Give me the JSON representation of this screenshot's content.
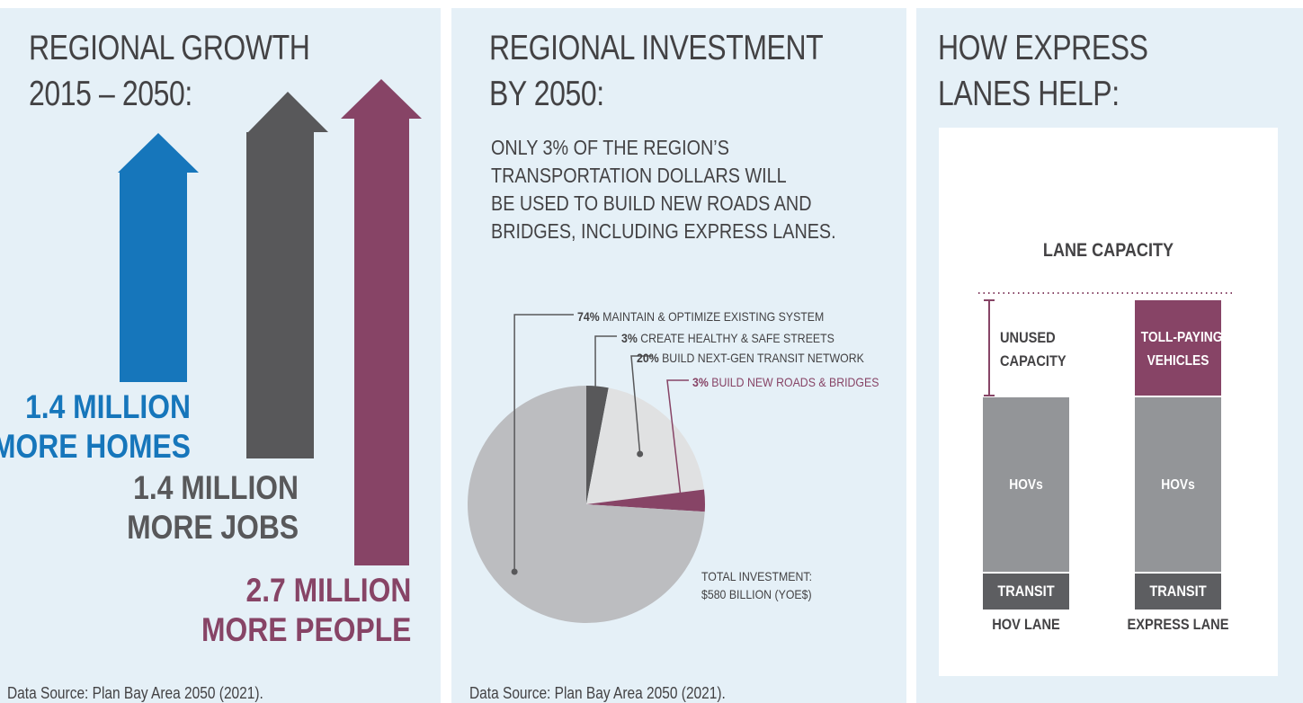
{
  "growth": {
    "title_lines": [
      "REGIONAL GROWTH",
      "2015 – 2050:"
    ],
    "homes": {
      "line1": "1.4 MILLION",
      "line2": "MORE HOMES",
      "value_millions": 1.4,
      "color": "#1676bb"
    },
    "jobs": {
      "line1": "1.4 MILLION",
      "line2": "MORE JOBS",
      "value_millions": 1.4,
      "color": "#58585a"
    },
    "people": {
      "line1": "2.7 MILLION",
      "line2": "MORE PEOPLE",
      "value_millions": 2.7,
      "color": "#874466"
    },
    "source": "Data Source: Plan Bay Area 2050 (2021)."
  },
  "investment": {
    "title_lines": [
      "REGIONAL INVESTMENT",
      "BY 2050:"
    ],
    "intro_lines": [
      "ONLY 3% OF THE REGION’S",
      "TRANSPORTATION DOLLARS WILL",
      "BE USED TO BUILD NEW ROADS AND",
      "BRIDGES, INCLUDING EXPRESS LANES."
    ],
    "total_lines": [
      "TOTAL INVESTMENT:",
      "$580 BILLION (YOE$)"
    ],
    "source": "Data Source: Plan Bay Area 2050 (2021)."
  },
  "express": {
    "title_lines": [
      "HOW EXPRESS",
      "LANES HELP:"
    ],
    "chart_title": "LANE CAPACITY",
    "unused_lines": [
      "UNUSED",
      "CAPACITY"
    ],
    "toll_lines": [
      "TOLL-PAYING",
      "VEHICLES"
    ],
    "hovs_label": "HOVs",
    "transit_label": "TRANSIT",
    "hov_lane_label": "HOV LANE",
    "express_lane_label": "EXPRESS LANE"
  },
  "colors": {
    "panel_bg": "#e5f0f7",
    "blue": "#1676bb",
    "dark_gray": "#58585a",
    "plum": "#874466",
    "pie_light": "#bcbdc0",
    "pie_lighter": "#e0e1e2",
    "lane_gray": "#939598",
    "transit_gray": "#5d5e61"
  },
  "chart_data": [
    {
      "type": "pie",
      "slices": [
        {
          "pct": "74%",
          "label": "MAINTAIN & OPTIMIZE EXISTING SYSTEM",
          "value": 74,
          "color": "#bcbdc0"
        },
        {
          "pct": "3%",
          "label": "CREATE HEALTHY & SAFE STREETS",
          "value": 3,
          "color": "#58585a"
        },
        {
          "pct": "20%",
          "label": "BUILD NEXT-GEN TRANSIT NETWORK",
          "value": 20,
          "color": "#e0e1e2"
        },
        {
          "pct": "3%",
          "label": "BUILD NEW ROADS & BRIDGES",
          "value": 3,
          "color": "#874466"
        }
      ]
    },
    {
      "type": "bar",
      "title": "LANE CAPACITY",
      "categories": [
        "HOV LANE",
        "EXPRESS LANE"
      ],
      "stacked": true,
      "series": [
        {
          "name": "TRANSIT",
          "values": [
            1,
            1
          ]
        },
        {
          "name": "HOVs",
          "values": [
            5,
            5
          ]
        },
        {
          "name": "TOLL-PAYING VEHICLES",
          "values": [
            0,
            2
          ]
        },
        {
          "name": "UNUSED CAPACITY",
          "values": [
            2,
            0
          ]
        }
      ]
    }
  ]
}
